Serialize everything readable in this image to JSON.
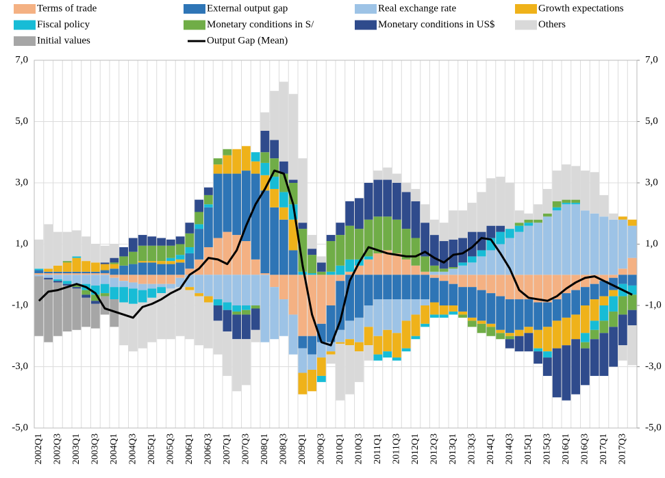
{
  "chart_data": {
    "type": "bar",
    "stacked": true,
    "categories": [
      "2002Q1",
      null,
      "2002Q3",
      null,
      "2003Q1",
      null,
      "2003Q3",
      null,
      "2004Q1",
      null,
      "2004Q3",
      null,
      "2005Q1",
      null,
      "2005Q3",
      null,
      "2006Q1",
      null,
      "2006Q3",
      null,
      "2007Q1",
      null,
      "2007Q3",
      null,
      "2008Q1",
      null,
      "2008Q3",
      null,
      "2009Q1",
      null,
      "2009Q3",
      null,
      "2010Q1",
      null,
      "2010Q3",
      null,
      "2011Q1",
      null,
      "2011Q3",
      null,
      "2012Q1",
      null,
      "2012Q3",
      null,
      "2013Q1",
      null,
      "2013Q3",
      null,
      "2014Q1",
      null,
      "2014Q3",
      null,
      "2015Q1",
      null,
      "2015Q3",
      null,
      "2016Q1",
      null,
      "2016Q3",
      null,
      "2017Q1",
      null,
      "2017Q3",
      null
    ],
    "series": [
      {
        "name": "Terms of trade",
        "color": "#f4b183",
        "values": [
          0.05,
          0.05,
          0.05,
          0.05,
          0.05,
          0.05,
          0.05,
          0.05,
          -0.1,
          -0.2,
          -0.25,
          -0.3,
          -0.3,
          -0.3,
          -0.3,
          -0.1,
          0.2,
          0.5,
          0.9,
          1.2,
          1.4,
          1.3,
          1.1,
          0.5,
          0.05,
          -0.4,
          -0.8,
          -1.3,
          -2.0,
          -2.0,
          -1.6,
          -1.0,
          -0.2,
          0.1,
          0.3,
          0.5,
          0.7,
          0.8,
          0.7,
          0.5,
          0.3,
          0.1,
          -0.1,
          -0.2,
          -0.3,
          -0.4,
          -0.4,
          -0.5,
          -0.6,
          -0.7,
          -0.8,
          -0.8,
          -0.8,
          -0.9,
          -0.9,
          -0.8,
          -0.6,
          -0.5,
          -0.4,
          -0.3,
          -0.2,
          -0.1,
          0.2,
          0.55
        ]
      },
      {
        "name": "External output gap",
        "color": "#2e75b6",
        "values": [
          0.1,
          0.05,
          0.05,
          0.05,
          0.05,
          0.05,
          0.05,
          0.1,
          0.2,
          0.3,
          0.35,
          0.4,
          0.4,
          0.35,
          0.35,
          0.4,
          0.5,
          1.0,
          1.3,
          2.1,
          1.9,
          2.0,
          2.3,
          2.8,
          2.7,
          2.2,
          1.8,
          0.8,
          -0.4,
          -0.6,
          -0.6,
          -1.2,
          -1.6,
          -1.5,
          -1.4,
          -1.0,
          -0.8,
          -0.8,
          -0.8,
          -0.8,
          -0.8,
          -0.8,
          -0.8,
          -0.8,
          -0.7,
          -0.8,
          -1.0,
          -1.0,
          -1.0,
          -1.1,
          -1.1,
          -1.0,
          -0.9,
          -0.9,
          -0.8,
          -0.7,
          -0.8,
          -0.8,
          -0.6,
          -0.5,
          -0.5,
          -0.4,
          -0.3,
          -0.35
        ]
      },
      {
        "name": "Real exchange rate",
        "color": "#9dc3e6",
        "values": [
          -0.05,
          -0.1,
          -0.15,
          -0.2,
          -0.3,
          -0.3,
          -0.35,
          -0.3,
          -0.3,
          -0.2,
          -0.2,
          -0.2,
          -0.15,
          -0.1,
          -0.15,
          -0.3,
          -0.4,
          -0.6,
          -0.7,
          -0.8,
          -0.9,
          -1.0,
          -1.0,
          -1.0,
          -2.2,
          -1.7,
          -1.2,
          -1.3,
          -0.8,
          -0.5,
          -0.5,
          -0.3,
          -0.4,
          -0.6,
          -0.8,
          -0.7,
          -1.2,
          -1.0,
          -1.1,
          -0.7,
          -0.5,
          -0.2,
          0.1,
          0.1,
          0.2,
          0.3,
          0.4,
          0.6,
          0.8,
          1.0,
          1.2,
          1.4,
          1.6,
          1.7,
          1.9,
          2.1,
          2.3,
          2.3,
          2.1,
          2.0,
          1.9,
          1.8,
          1.6,
          1.05
        ]
      },
      {
        "name": "Growth expectations",
        "color": "#efb21a",
        "values": [
          0,
          0.1,
          0.2,
          0.3,
          0.45,
          0.35,
          0.3,
          0.2,
          0.15,
          0,
          0,
          0.05,
          0.05,
          0.1,
          0.1,
          0.1,
          -0.1,
          -0.1,
          -0.2,
          0.3,
          0.6,
          0.8,
          0.8,
          0.4,
          0.5,
          0.6,
          0.4,
          1.0,
          -0.7,
          -0.7,
          -0.6,
          -0.1,
          -0.05,
          -0.2,
          -0.3,
          -0.6,
          -0.6,
          -0.7,
          -0.8,
          -0.9,
          -0.7,
          -0.6,
          -0.4,
          -0.3,
          -0.2,
          -0.1,
          -0.1,
          -0.1,
          -0.1,
          -0.1,
          -0.1,
          -0.2,
          -0.2,
          -0.6,
          -0.8,
          -0.9,
          -0.9,
          -0.8,
          -0.9,
          -0.7,
          -0.3,
          -0.2,
          0.1,
          0.2
        ]
      },
      {
        "name": "Fiscal policy",
        "color": "#17bcd6",
        "values": [
          0.05,
          0,
          -0.05,
          -0.1,
          0.05,
          -0.2,
          -0.3,
          -0.3,
          -0.4,
          -0.5,
          -0.5,
          -0.4,
          -0.3,
          -0.2,
          0.1,
          0.15,
          0.2,
          0.15,
          0.1,
          -0.2,
          -0.25,
          -0.2,
          -0.15,
          0.3,
          0.4,
          0.4,
          0.5,
          0.5,
          0.1,
          0.05,
          -0.2,
          0.1,
          0.3,
          0.4,
          0.2,
          0.1,
          -0.2,
          -0.2,
          -0.1,
          -0.1,
          -0.1,
          -0.1,
          -0.1,
          -0.1,
          -0.1,
          0.1,
          0.2,
          0.2,
          0.4,
          0.4,
          0.3,
          0.2,
          0.1,
          -0.1,
          -0.2,
          0.1,
          0.05,
          0.05,
          -0.3,
          -0.3,
          -0.5,
          -0.5,
          -0.4,
          -0.3
        ]
      },
      {
        "name": "Monetary conditions in S/",
        "color": "#70ad47",
        "values": [
          0,
          0,
          0,
          0.05,
          -0.1,
          -0.15,
          -0.2,
          -0.1,
          0.05,
          0.3,
          0.4,
          0.5,
          0.5,
          0.5,
          0.4,
          0.35,
          0.45,
          0.4,
          0.3,
          0.2,
          0.2,
          -0.1,
          -0.15,
          -0.1,
          0.35,
          0.6,
          0.6,
          0.7,
          1.4,
          0.6,
          0.1,
          1.0,
          1.0,
          1.1,
          1.0,
          1.2,
          1.2,
          1.1,
          1.1,
          1.0,
          0.9,
          0.5,
          0.2,
          0.1,
          0.05,
          -0.1,
          -0.2,
          -0.3,
          -0.3,
          -0.2,
          -0.1,
          0.1,
          0.1,
          0.1,
          0.1,
          0.2,
          0.1,
          0.1,
          -0.2,
          -0.3,
          -0.4,
          -0.5,
          -0.6,
          -0.5
        ]
      },
      {
        "name": "Monetary conditions in US$",
        "color": "#2f4b8c",
        "values": [
          0,
          -0.05,
          -0.05,
          -0.05,
          -0.05,
          -0.1,
          -0.1,
          0.05,
          0.15,
          0.3,
          0.45,
          0.35,
          0.3,
          0.25,
          0.2,
          0.25,
          0.35,
          0.4,
          0.25,
          -0.5,
          -0.7,
          -0.8,
          -0.8,
          -0.7,
          0.7,
          0.6,
          0.4,
          0.1,
          0.2,
          0.2,
          0.3,
          0.2,
          0.4,
          0.8,
          1.0,
          1.2,
          1.2,
          1.2,
          1.2,
          1.2,
          1.2,
          1.1,
          1.0,
          0.9,
          0.9,
          0.8,
          0.8,
          0.6,
          0.4,
          0.2,
          -0.3,
          -0.5,
          -0.6,
          -0.4,
          -0.6,
          -1.6,
          -1.8,
          -1.8,
          -1.2,
          -1.2,
          -1.4,
          -1.3,
          -1.0,
          -0.5
        ]
      },
      {
        "name": "Others",
        "color": "#d9d9d9",
        "values": [
          0.95,
          1.45,
          1.1,
          0.95,
          0.85,
          0.8,
          0.6,
          0.55,
          0.45,
          -1.4,
          -1.55,
          -1.5,
          -1.45,
          -1.5,
          -1.65,
          -1.6,
          -1.6,
          -1.6,
          -1.5,
          -1.1,
          -1.45,
          -1.7,
          -1.5,
          -0.4,
          0.6,
          1.6,
          2.6,
          2.8,
          2.1,
          0.45,
          0.2,
          -0.3,
          -1.85,
          -1.6,
          -1.0,
          -0.5,
          0.3,
          0.4,
          0.3,
          0.3,
          0.4,
          0.6,
          0.5,
          0.6,
          0.95,
          0.9,
          0.95,
          1.3,
          1.55,
          1.6,
          1.5,
          0.4,
          0.2,
          0.5,
          0.8,
          1.0,
          1.15,
          1.1,
          1.3,
          1.35,
          0.7,
          0.2,
          -0.5,
          -1.3
        ]
      },
      {
        "name": "Initial values",
        "color": "#a6a6a6",
        "values": [
          -1.95,
          -2.05,
          -1.75,
          -1.5,
          -1.35,
          -0.95,
          -0.8,
          -0.6,
          -0.9,
          0,
          0,
          0,
          0,
          0,
          0,
          0,
          0,
          0,
          0,
          0,
          0,
          0,
          0,
          0,
          0,
          0,
          0,
          0,
          0,
          0,
          0,
          0,
          0,
          0,
          0,
          0,
          0,
          0,
          0,
          0,
          0,
          0,
          0,
          0,
          0,
          0,
          0,
          0,
          0,
          0,
          0,
          0,
          0,
          0,
          0,
          0,
          0,
          0,
          0,
          0,
          0,
          0,
          0,
          0
        ]
      },
      {
        "name": "Output Gap (Mean)",
        "type": "line",
        "color": "#000000",
        "values": [
          -0.85,
          -0.55,
          -0.5,
          -0.4,
          -0.3,
          -0.4,
          -0.6,
          -1.1,
          -1.2,
          -1.3,
          -1.4,
          -1.05,
          -0.95,
          -0.8,
          -0.6,
          -0.45,
          0.0,
          0.2,
          0.55,
          0.5,
          0.35,
          0.8,
          1.6,
          2.3,
          2.8,
          3.4,
          3.3,
          2.3,
          0.3,
          -1.3,
          -2.2,
          -2.3,
          -1.5,
          -0.2,
          0.4,
          0.9,
          0.8,
          0.7,
          0.65,
          0.6,
          0.6,
          0.75,
          0.55,
          0.4,
          0.65,
          0.7,
          0.9,
          1.2,
          1.15,
          0.7,
          0.2,
          -0.5,
          -0.75,
          -0.8,
          -0.85,
          -0.7,
          -0.45,
          -0.25,
          -0.1,
          -0.05,
          -0.2,
          -0.35,
          -0.5,
          -0.65
        ]
      }
    ],
    "ylim": [
      -5,
      7
    ],
    "yticks": [
      {
        "value": -5,
        "label": "-5,0"
      },
      {
        "value": -3,
        "label": "-3,0"
      },
      {
        "value": -1,
        "label": "-1,0"
      },
      {
        "value": 1,
        "label": "1,0"
      },
      {
        "value": 3,
        "label": "3,0"
      },
      {
        "value": 5,
        "label": "5,0"
      },
      {
        "value": 7,
        "label": "7,0"
      }
    ],
    "y2lim": [
      -5,
      7
    ],
    "y2ticks": [
      {
        "value": -5,
        "label": "-5,0"
      },
      {
        "value": -3,
        "label": "-3,0"
      },
      {
        "value": -1,
        "label": "-1,0"
      },
      {
        "value": 1,
        "label": "1,0"
      },
      {
        "value": 3,
        "label": "3,0"
      },
      {
        "value": 5,
        "label": "5,0"
      },
      {
        "value": 7,
        "label": "7,0"
      }
    ],
    "grid": true,
    "legend": "top"
  }
}
